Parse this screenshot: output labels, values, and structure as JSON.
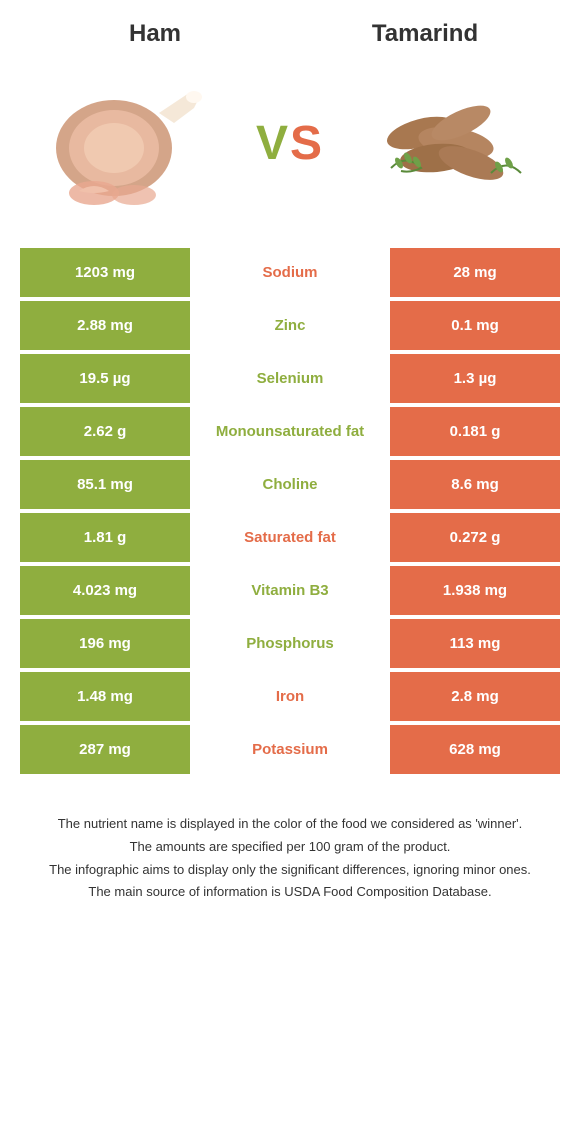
{
  "header": {
    "left_title": "Ham",
    "right_title": "Tamarind",
    "vs_v": "V",
    "vs_s": "S"
  },
  "colors": {
    "green": "#8fae3f",
    "orange": "#e46c49",
    "text_dark": "#333333",
    "white": "#ffffff"
  },
  "rows": [
    {
      "left": "1203 mg",
      "label": "Sodium",
      "right": "28 mg",
      "winner": "orange"
    },
    {
      "left": "2.88 mg",
      "label": "Zinc",
      "right": "0.1 mg",
      "winner": "green"
    },
    {
      "left": "19.5 µg",
      "label": "Selenium",
      "right": "1.3 µg",
      "winner": "green"
    },
    {
      "left": "2.62 g",
      "label": "Monounsaturated fat",
      "right": "0.181 g",
      "winner": "green"
    },
    {
      "left": "85.1 mg",
      "label": "Choline",
      "right": "8.6 mg",
      "winner": "green"
    },
    {
      "left": "1.81 g",
      "label": "Saturated fat",
      "right": "0.272 g",
      "winner": "orange"
    },
    {
      "left": "4.023 mg",
      "label": "Vitamin B3",
      "right": "1.938 mg",
      "winner": "green"
    },
    {
      "left": "196 mg",
      "label": "Phosphorus",
      "right": "113 mg",
      "winner": "green"
    },
    {
      "left": "1.48 mg",
      "label": "Iron",
      "right": "2.8 mg",
      "winner": "orange"
    },
    {
      "left": "287 mg",
      "label": "Potassium",
      "right": "628 mg",
      "winner": "orange"
    }
  ],
  "footer": {
    "line1": "The nutrient name is displayed in the color of the food we considered as 'winner'.",
    "line2": "The amounts are specified per 100 gram of the product.",
    "line3": "The infographic aims to display only the significant differences, ignoring minor ones.",
    "line4": "The main source of information is USDA Food Composition Database."
  }
}
